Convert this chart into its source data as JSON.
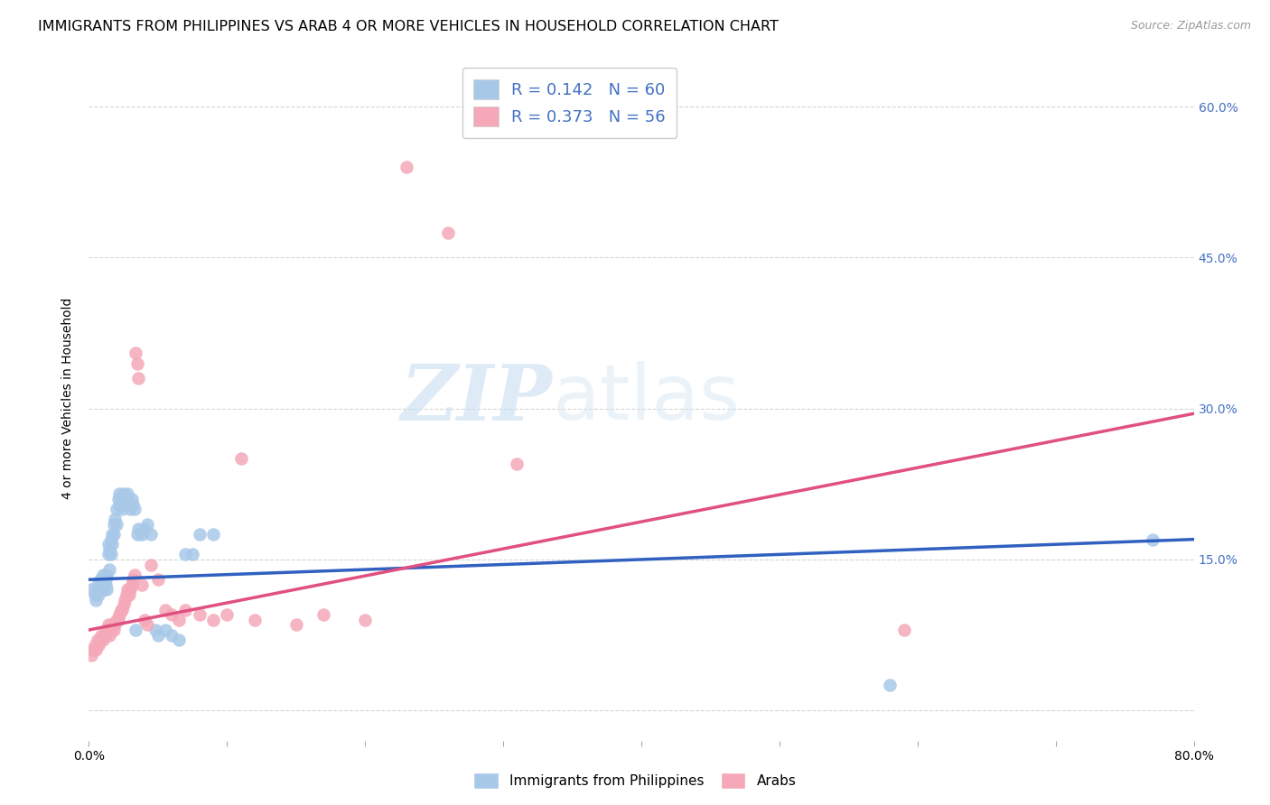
{
  "title": "IMMIGRANTS FROM PHILIPPINES VS ARAB 4 OR MORE VEHICLES IN HOUSEHOLD CORRELATION CHART",
  "source": "Source: ZipAtlas.com",
  "ylabel": "4 or more Vehicles in Household",
  "xlim": [
    0.0,
    0.8
  ],
  "ylim": [
    -0.03,
    0.65
  ],
  "watermark_text": "ZIPatlas",
  "legend_r1": "0.142",
  "legend_n1": "60",
  "legend_r2": "0.373",
  "legend_n2": "56",
  "blue_color": "#a8c8e8",
  "pink_color": "#f4a8b8",
  "blue_line_color": "#3060c0",
  "pink_line_color": "#e05080",
  "right_axis_color": "#4472C4",
  "title_fontsize": 11.5,
  "axis_label_fontsize": 10,
  "tick_fontsize": 10,
  "blue_scatter_x": [
    0.002,
    0.004,
    0.005,
    0.006,
    0.007,
    0.008,
    0.008,
    0.009,
    0.01,
    0.01,
    0.011,
    0.012,
    0.012,
    0.013,
    0.013,
    0.014,
    0.014,
    0.015,
    0.015,
    0.016,
    0.016,
    0.017,
    0.017,
    0.018,
    0.018,
    0.019,
    0.02,
    0.02,
    0.021,
    0.022,
    0.022,
    0.023,
    0.024,
    0.025,
    0.026,
    0.027,
    0.028,
    0.029,
    0.03,
    0.031,
    0.032,
    0.033,
    0.034,
    0.035,
    0.036,
    0.038,
    0.04,
    0.042,
    0.045,
    0.048,
    0.05,
    0.055,
    0.06,
    0.065,
    0.07,
    0.075,
    0.08,
    0.09,
    0.58,
    0.77
  ],
  "blue_scatter_y": [
    0.12,
    0.115,
    0.11,
    0.125,
    0.115,
    0.12,
    0.13,
    0.12,
    0.125,
    0.135,
    0.12,
    0.13,
    0.125,
    0.12,
    0.135,
    0.155,
    0.165,
    0.14,
    0.16,
    0.155,
    0.17,
    0.165,
    0.175,
    0.175,
    0.185,
    0.19,
    0.2,
    0.185,
    0.21,
    0.205,
    0.215,
    0.21,
    0.2,
    0.215,
    0.205,
    0.21,
    0.215,
    0.205,
    0.2,
    0.21,
    0.205,
    0.2,
    0.08,
    0.175,
    0.18,
    0.175,
    0.18,
    0.185,
    0.175,
    0.08,
    0.075,
    0.08,
    0.075,
    0.07,
    0.155,
    0.155,
    0.175,
    0.175,
    0.025,
    0.17
  ],
  "pink_scatter_x": [
    0.002,
    0.003,
    0.004,
    0.005,
    0.006,
    0.007,
    0.008,
    0.009,
    0.01,
    0.011,
    0.012,
    0.013,
    0.014,
    0.015,
    0.016,
    0.017,
    0.018,
    0.019,
    0.02,
    0.021,
    0.022,
    0.023,
    0.024,
    0.025,
    0.026,
    0.027,
    0.028,
    0.029,
    0.03,
    0.031,
    0.032,
    0.033,
    0.034,
    0.035,
    0.036,
    0.038,
    0.04,
    0.042,
    0.045,
    0.05,
    0.055,
    0.06,
    0.065,
    0.07,
    0.08,
    0.09,
    0.1,
    0.11,
    0.12,
    0.15,
    0.17,
    0.2,
    0.23,
    0.26,
    0.31,
    0.59
  ],
  "pink_scatter_y": [
    0.055,
    0.06,
    0.065,
    0.06,
    0.07,
    0.065,
    0.07,
    0.075,
    0.07,
    0.075,
    0.075,
    0.08,
    0.085,
    0.075,
    0.08,
    0.085,
    0.08,
    0.085,
    0.09,
    0.09,
    0.095,
    0.1,
    0.1,
    0.105,
    0.11,
    0.115,
    0.12,
    0.115,
    0.12,
    0.125,
    0.13,
    0.135,
    0.355,
    0.345,
    0.33,
    0.125,
    0.09,
    0.085,
    0.145,
    0.13,
    0.1,
    0.095,
    0.09,
    0.1,
    0.095,
    0.09,
    0.095,
    0.25,
    0.09,
    0.085,
    0.095,
    0.09,
    0.54,
    0.475,
    0.245,
    0.08
  ]
}
